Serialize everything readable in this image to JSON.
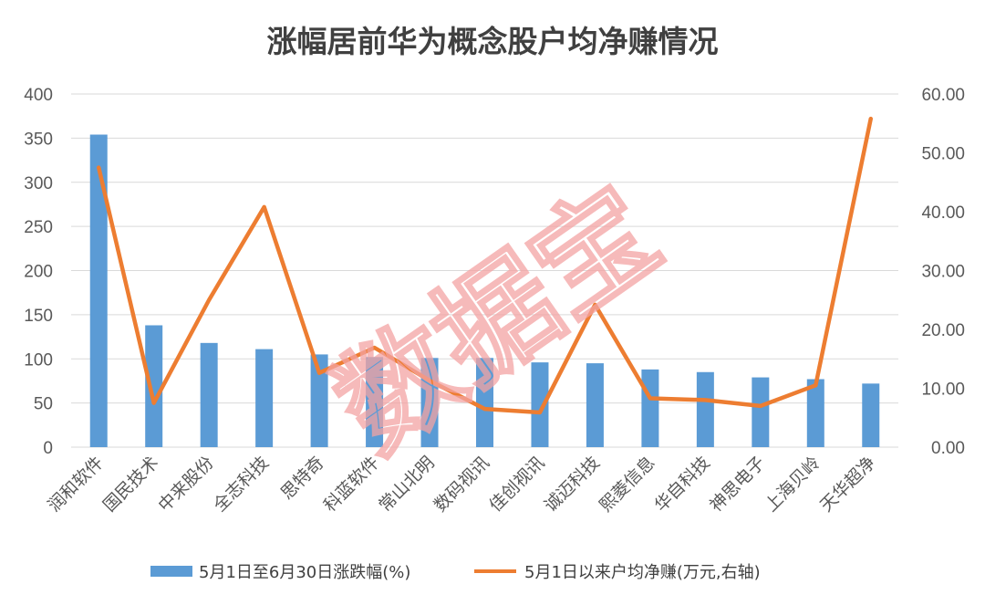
{
  "watermark": "数据宝",
  "chart_data": {
    "type": "bar",
    "title": "涨幅居前华为概念股户均净赚情况",
    "categories": [
      "润和软件",
      "国民技术",
      "中来股份",
      "全志科技",
      "思特奇",
      "科蓝软件",
      "常山北明",
      "数码视讯",
      "佳创视讯",
      "诚迈科技",
      "熙菱信息",
      "华自科技",
      "神思电子",
      "上海贝岭",
      "天华超净"
    ],
    "series": [
      {
        "name": "5月1日至6月30日涨跌幅(%)",
        "type": "bar",
        "axis": "left",
        "color": "#5b9bd5",
        "values": [
          354,
          138,
          118,
          111,
          105,
          102,
          101,
          101,
          96,
          95,
          88,
          85,
          79,
          77,
          72
        ]
      },
      {
        "name": "5月1日以来户均净赚(万元,右轴)",
        "type": "line",
        "axis": "right",
        "color": "#ed7d31",
        "values": [
          47.5,
          7.5,
          25.0,
          40.8,
          12.6,
          16.9,
          11.3,
          6.5,
          5.9,
          24.2,
          8.3,
          8.0,
          7.0,
          10.5,
          55.8
        ]
      }
    ],
    "y_left": {
      "ylim": [
        0,
        400
      ],
      "ticks": [
        "0",
        "50",
        "100",
        "150",
        "200",
        "250",
        "300",
        "350",
        "400"
      ]
    },
    "y_right": {
      "ylim": [
        0,
        60
      ],
      "ticks": [
        "0.00",
        "10.00",
        "20.00",
        "30.00",
        "40.00",
        "50.00",
        "60.00"
      ]
    },
    "grid": true,
    "legend_position": "bottom"
  }
}
